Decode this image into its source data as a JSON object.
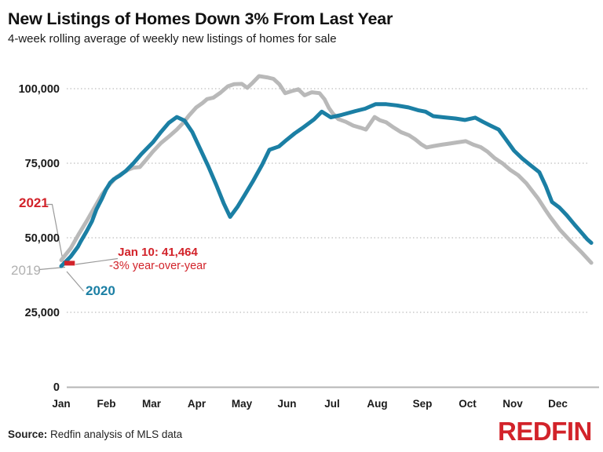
{
  "header": {
    "title": "New Listings of Homes Down 3% From Last Year",
    "subtitle": "4-week rolling average of weekly new listings of homes for sale"
  },
  "annotations": {
    "label_2021": "2021",
    "label_2019": "2019",
    "label_2020": "2020",
    "callout_line1": "Jan 10: 41,464",
    "callout_line2": "-3% year-over-year"
  },
  "footer": {
    "source_label": "Source:",
    "source_text": " Redfin analysis of MLS data",
    "logo_text": "REDFIN"
  },
  "colors": {
    "blue": "#1b7fa4",
    "gray": "#b9b9b9",
    "red": "#d2232a",
    "text_dark": "#1a1a1a",
    "gridline": "#c9c9c9",
    "axis_line": "#b5b5b5",
    "leader": "#9a9a9a",
    "label_gray": "#b0b0b0"
  },
  "chart_data": {
    "type": "line",
    "title": "New Listings of Homes Down 3% From Last Year",
    "subtitle": "4-week rolling average of weekly new listings of homes for sale",
    "x_unit": "fractional months from Jan 1",
    "x_tick_labels": [
      "Jan",
      "Feb",
      "Mar",
      "Apr",
      "May",
      "Jun",
      "Jul",
      "Aug",
      "Sep",
      "Oct",
      "Nov",
      "Dec"
    ],
    "y_ticks": [
      {
        "value": 0,
        "label": "0"
      },
      {
        "value": 25000,
        "label": "25,000"
      },
      {
        "value": 50000,
        "label": "50,000"
      },
      {
        "value": 75000,
        "label": "75,000"
      },
      {
        "value": 100000,
        "label": "100,000"
      }
    ],
    "ylim": [
      0,
      107000
    ],
    "grid": "dotted horizontal at ticks",
    "legend": "inline labels at line starts",
    "series": [
      {
        "name": "2019",
        "color_key": "gray",
        "points": [
          [
            0,
            42500
          ],
          [
            0.21,
            46500
          ],
          [
            0.38,
            51000
          ],
          [
            0.56,
            55500
          ],
          [
            0.73,
            60000
          ],
          [
            0.9,
            64500
          ],
          [
            1.08,
            68000
          ],
          [
            1.22,
            70300
          ],
          [
            1.34,
            71500
          ],
          [
            1.48,
            72800
          ],
          [
            1.6,
            73500
          ],
          [
            1.74,
            73700
          ],
          [
            1.86,
            75800
          ],
          [
            2.03,
            78900
          ],
          [
            2.21,
            81800
          ],
          [
            2.38,
            83900
          ],
          [
            2.56,
            86300
          ],
          [
            2.7,
            88500
          ],
          [
            2.83,
            91000
          ],
          [
            2.99,
            93700
          ],
          [
            3.13,
            95200
          ],
          [
            3.23,
            96500
          ],
          [
            3.37,
            97000
          ],
          [
            3.53,
            98700
          ],
          [
            3.69,
            100800
          ],
          [
            3.83,
            101500
          ],
          [
            4,
            101600
          ],
          [
            4.12,
            100300
          ],
          [
            4.24,
            102000
          ],
          [
            4.38,
            104200
          ],
          [
            4.56,
            103800
          ],
          [
            4.7,
            103300
          ],
          [
            4.83,
            101500
          ],
          [
            4.96,
            98500
          ],
          [
            5.11,
            99200
          ],
          [
            5.25,
            99800
          ],
          [
            5.39,
            97800
          ],
          [
            5.55,
            98800
          ],
          [
            5.72,
            98500
          ],
          [
            5.83,
            96500
          ],
          [
            5.93,
            93500
          ],
          [
            6.02,
            91600
          ],
          [
            6.14,
            89800
          ],
          [
            6.3,
            88900
          ],
          [
            6.47,
            87600
          ],
          [
            6.63,
            86900
          ],
          [
            6.75,
            86300
          ],
          [
            6.85,
            88500
          ],
          [
            6.94,
            90500
          ],
          [
            7.06,
            89400
          ],
          [
            7.2,
            88700
          ],
          [
            7.36,
            87000
          ],
          [
            7.53,
            85400
          ],
          [
            7.7,
            84400
          ],
          [
            7.84,
            83000
          ],
          [
            7.97,
            81400
          ],
          [
            8.09,
            80300
          ],
          [
            8.26,
            80800
          ],
          [
            8.43,
            81200
          ],
          [
            8.61,
            81600
          ],
          [
            8.78,
            82000
          ],
          [
            8.96,
            82400
          ],
          [
            9.13,
            81200
          ],
          [
            9.29,
            80400
          ],
          [
            9.44,
            78900
          ],
          [
            9.6,
            76700
          ],
          [
            9.77,
            75000
          ],
          [
            9.95,
            72700
          ],
          [
            10.12,
            71000
          ],
          [
            10.3,
            68300
          ],
          [
            10.56,
            63200
          ],
          [
            10.73,
            59200
          ],
          [
            10.83,
            57000
          ],
          [
            11.04,
            52800
          ],
          [
            11.29,
            48700
          ],
          [
            11.52,
            45200
          ],
          [
            11.74,
            41600
          ]
        ]
      },
      {
        "name": "2020",
        "color_key": "blue",
        "points": [
          [
            0,
            40500
          ],
          [
            0.21,
            43700
          ],
          [
            0.37,
            47000
          ],
          [
            0.43,
            48700
          ],
          [
            0.56,
            52100
          ],
          [
            0.68,
            55500
          ],
          [
            0.78,
            59500
          ],
          [
            0.9,
            63100
          ],
          [
            0.99,
            66100
          ],
          [
            1.08,
            68400
          ],
          [
            1.17,
            69700
          ],
          [
            1.29,
            70800
          ],
          [
            1.43,
            72400
          ],
          [
            1.6,
            75000
          ],
          [
            1.77,
            78000
          ],
          [
            2.03,
            82000
          ],
          [
            2.21,
            85500
          ],
          [
            2.38,
            88500
          ],
          [
            2.56,
            90500
          ],
          [
            2.73,
            89300
          ],
          [
            2.9,
            85500
          ],
          [
            3.08,
            79700
          ],
          [
            3.26,
            73900
          ],
          [
            3.43,
            67900
          ],
          [
            3.6,
            61500
          ],
          [
            3.74,
            57000
          ],
          [
            3.91,
            60500
          ],
          [
            4.07,
            64500
          ],
          [
            4.24,
            68800
          ],
          [
            4.45,
            74500
          ],
          [
            4.61,
            79500
          ],
          [
            4.82,
            80600
          ],
          [
            4.99,
            82800
          ],
          [
            5.17,
            85000
          ],
          [
            5.34,
            86800
          ],
          [
            5.6,
            89700
          ],
          [
            5.77,
            92300
          ],
          [
            5.97,
            90400
          ],
          [
            6.21,
            91200
          ],
          [
            6.52,
            92500
          ],
          [
            6.73,
            93300
          ],
          [
            6.96,
            94800
          ],
          [
            7.2,
            94800
          ],
          [
            7.43,
            94400
          ],
          [
            7.69,
            93700
          ],
          [
            7.9,
            92800
          ],
          [
            8.07,
            92300
          ],
          [
            8.24,
            90800
          ],
          [
            8.47,
            90400
          ],
          [
            8.73,
            90000
          ],
          [
            8.94,
            89500
          ],
          [
            9.17,
            90300
          ],
          [
            9.34,
            88900
          ],
          [
            9.51,
            87600
          ],
          [
            9.69,
            86300
          ],
          [
            9.86,
            82800
          ],
          [
            10.03,
            79200
          ],
          [
            10.21,
            76600
          ],
          [
            10.38,
            74500
          ],
          [
            10.59,
            72000
          ],
          [
            10.73,
            67400
          ],
          [
            10.87,
            62000
          ],
          [
            11.03,
            60200
          ],
          [
            11.2,
            57500
          ],
          [
            11.37,
            54400
          ],
          [
            11.55,
            51300
          ],
          [
            11.65,
            49500
          ],
          [
            11.74,
            48300
          ]
        ]
      },
      {
        "name": "2021",
        "color_key": "red",
        "points": [
          [
            0.07,
            41464
          ],
          [
            0.3,
            41464
          ]
        ],
        "note": "Jan 10: 41,464 (-3% year-over-year)"
      }
    ]
  }
}
